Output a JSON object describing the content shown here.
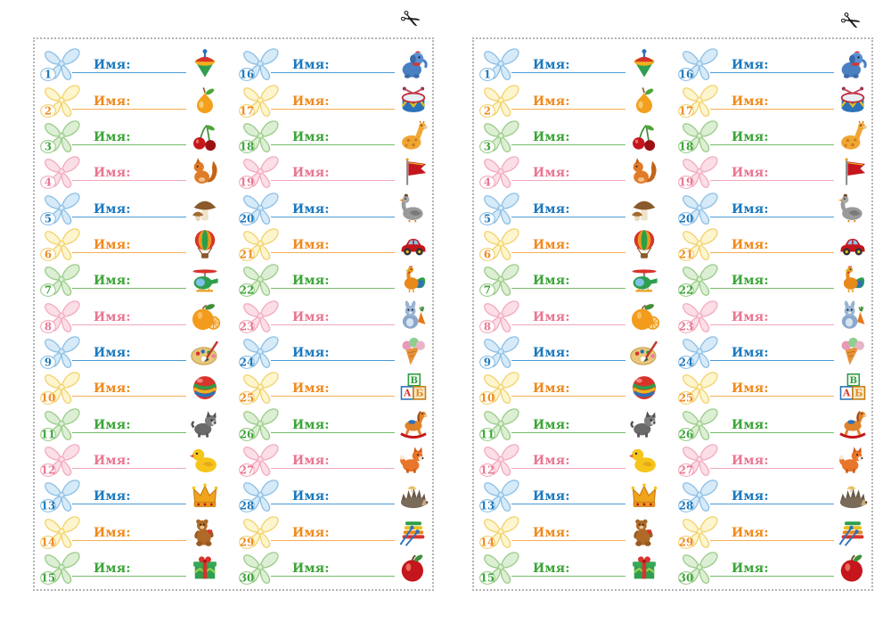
{
  "page": {
    "scissors_glyph": "✂",
    "description": "Printable sheet of children's name labels, two identical cut-out sheets",
    "label_text": "Имя:"
  },
  "sheets": [
    {
      "name": "left-sheet"
    },
    {
      "name": "right-sheet"
    }
  ],
  "colors": {
    "cycle": [
      "blue",
      "yellow",
      "green",
      "pink"
    ],
    "blue": {
      "text": "#1b79be",
      "line": "#4d9bd5",
      "bow_fill": "#d7eaf8",
      "bow_stroke": "#8cc0e6"
    },
    "yellow": {
      "text": "#f08a1d",
      "line": "#f5ae56",
      "bow_fill": "#fdf5cd",
      "bow_stroke": "#f2d26e"
    },
    "green": {
      "text": "#3ba538",
      "line": "#74bd68",
      "bow_fill": "#dcefd4",
      "bow_stroke": "#9bcc89"
    },
    "pink": {
      "text": "#e97690",
      "line": "#f0a9ba",
      "bow_fill": "#fbdee6",
      "bow_stroke": "#f3abbe"
    }
  },
  "labels": [
    {
      "number": "1",
      "label": "Имя:",
      "icon": "spinning-top-icon"
    },
    {
      "number": "2",
      "label": "Имя:",
      "icon": "pear-icon"
    },
    {
      "number": "3",
      "label": "Имя:",
      "icon": "cherries-icon"
    },
    {
      "number": "4",
      "label": "Имя:",
      "icon": "squirrel-icon"
    },
    {
      "number": "5",
      "label": "Имя:",
      "icon": "mushrooms-icon"
    },
    {
      "number": "6",
      "label": "Имя:",
      "icon": "hot-air-balloon-icon"
    },
    {
      "number": "7",
      "label": "Имя:",
      "icon": "helicopter-icon"
    },
    {
      "number": "8",
      "label": "Имя:",
      "icon": "orange-icon"
    },
    {
      "number": "9",
      "label": "Имя:",
      "icon": "paint-palette-icon"
    },
    {
      "number": "10",
      "label": "Имя:",
      "icon": "striped-ball-icon"
    },
    {
      "number": "11",
      "label": "Имя:",
      "icon": "puppy-icon"
    },
    {
      "number": "12",
      "label": "Имя:",
      "icon": "rubber-duck-icon"
    },
    {
      "number": "13",
      "label": "Имя:",
      "icon": "crown-icon"
    },
    {
      "number": "14",
      "label": "Имя:",
      "icon": "teddy-bear-icon"
    },
    {
      "number": "15",
      "label": "Имя:",
      "icon": "gift-box-icon"
    },
    {
      "number": "16",
      "label": "Имя:",
      "icon": "toy-elephant-icon"
    },
    {
      "number": "17",
      "label": "Имя:",
      "icon": "drum-icon"
    },
    {
      "number": "18",
      "label": "Имя:",
      "icon": "giraffe-icon"
    },
    {
      "number": "19",
      "label": "Имя:",
      "icon": "flag-icon"
    },
    {
      "number": "20",
      "label": "Имя:",
      "icon": "goose-icon"
    },
    {
      "number": "21",
      "label": "Имя:",
      "icon": "toy-car-icon"
    },
    {
      "number": "22",
      "label": "Имя:",
      "icon": "rooster-icon"
    },
    {
      "number": "23",
      "label": "Имя:",
      "icon": "bunny-carrot-icon"
    },
    {
      "number": "24",
      "label": "Имя:",
      "icon": "ice-cream-icon"
    },
    {
      "number": "25",
      "label": "Имя:",
      "icon": "alphabet-blocks-icon"
    },
    {
      "number": "26",
      "label": "Имя:",
      "icon": "rocking-horse-icon"
    },
    {
      "number": "27",
      "label": "Имя:",
      "icon": "fox-icon"
    },
    {
      "number": "28",
      "label": "Имя:",
      "icon": "hedgehog-icon"
    },
    {
      "number": "29",
      "label": "Имя:",
      "icon": "xylophone-icon"
    },
    {
      "number": "30",
      "label": "Имя:",
      "icon": "apple-icon"
    }
  ]
}
